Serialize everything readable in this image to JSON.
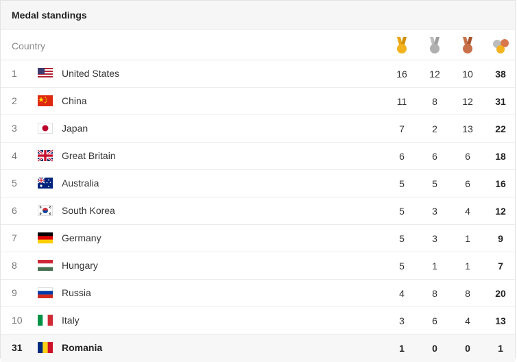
{
  "header": {
    "title": "Medal standings"
  },
  "columns": {
    "country_label": "Country"
  },
  "colors": {
    "gold": "#F2B31E",
    "silver": "#B0B0B0",
    "bronze": "#C8704A"
  },
  "rows": [
    {
      "rank": "1",
      "country": "United States",
      "flag": "us-flag",
      "gold": "16",
      "silver": "12",
      "bronze": "10",
      "total": "38"
    },
    {
      "rank": "2",
      "country": "China",
      "flag": "china-flag",
      "gold": "11",
      "silver": "8",
      "bronze": "12",
      "total": "31"
    },
    {
      "rank": "3",
      "country": "Japan",
      "flag": "japan-flag",
      "gold": "7",
      "silver": "2",
      "bronze": "13",
      "total": "22"
    },
    {
      "rank": "4",
      "country": "Great Britain",
      "flag": "uk-flag",
      "gold": "6",
      "silver": "6",
      "bronze": "6",
      "total": "18"
    },
    {
      "rank": "5",
      "country": "Australia",
      "flag": "australia-flag",
      "gold": "5",
      "silver": "5",
      "bronze": "6",
      "total": "16"
    },
    {
      "rank": "6",
      "country": "South Korea",
      "flag": "south-korea-flag",
      "gold": "5",
      "silver": "3",
      "bronze": "4",
      "total": "12"
    },
    {
      "rank": "7",
      "country": "Germany",
      "flag": "germany-flag",
      "gold": "5",
      "silver": "3",
      "bronze": "1",
      "total": "9"
    },
    {
      "rank": "8",
      "country": "Hungary",
      "flag": "hungary-flag",
      "gold": "5",
      "silver": "1",
      "bronze": "1",
      "total": "7"
    },
    {
      "rank": "9",
      "country": "Russia",
      "flag": "russia-flag",
      "gold": "4",
      "silver": "8",
      "bronze": "8",
      "total": "20"
    },
    {
      "rank": "10",
      "country": "Italy",
      "flag": "italy-flag",
      "gold": "3",
      "silver": "6",
      "bronze": "4",
      "total": "13"
    },
    {
      "rank": "31",
      "country": "Romania",
      "flag": "romania-flag",
      "gold": "1",
      "silver": "0",
      "bronze": "0",
      "total": "1",
      "highlighted": true
    }
  ]
}
